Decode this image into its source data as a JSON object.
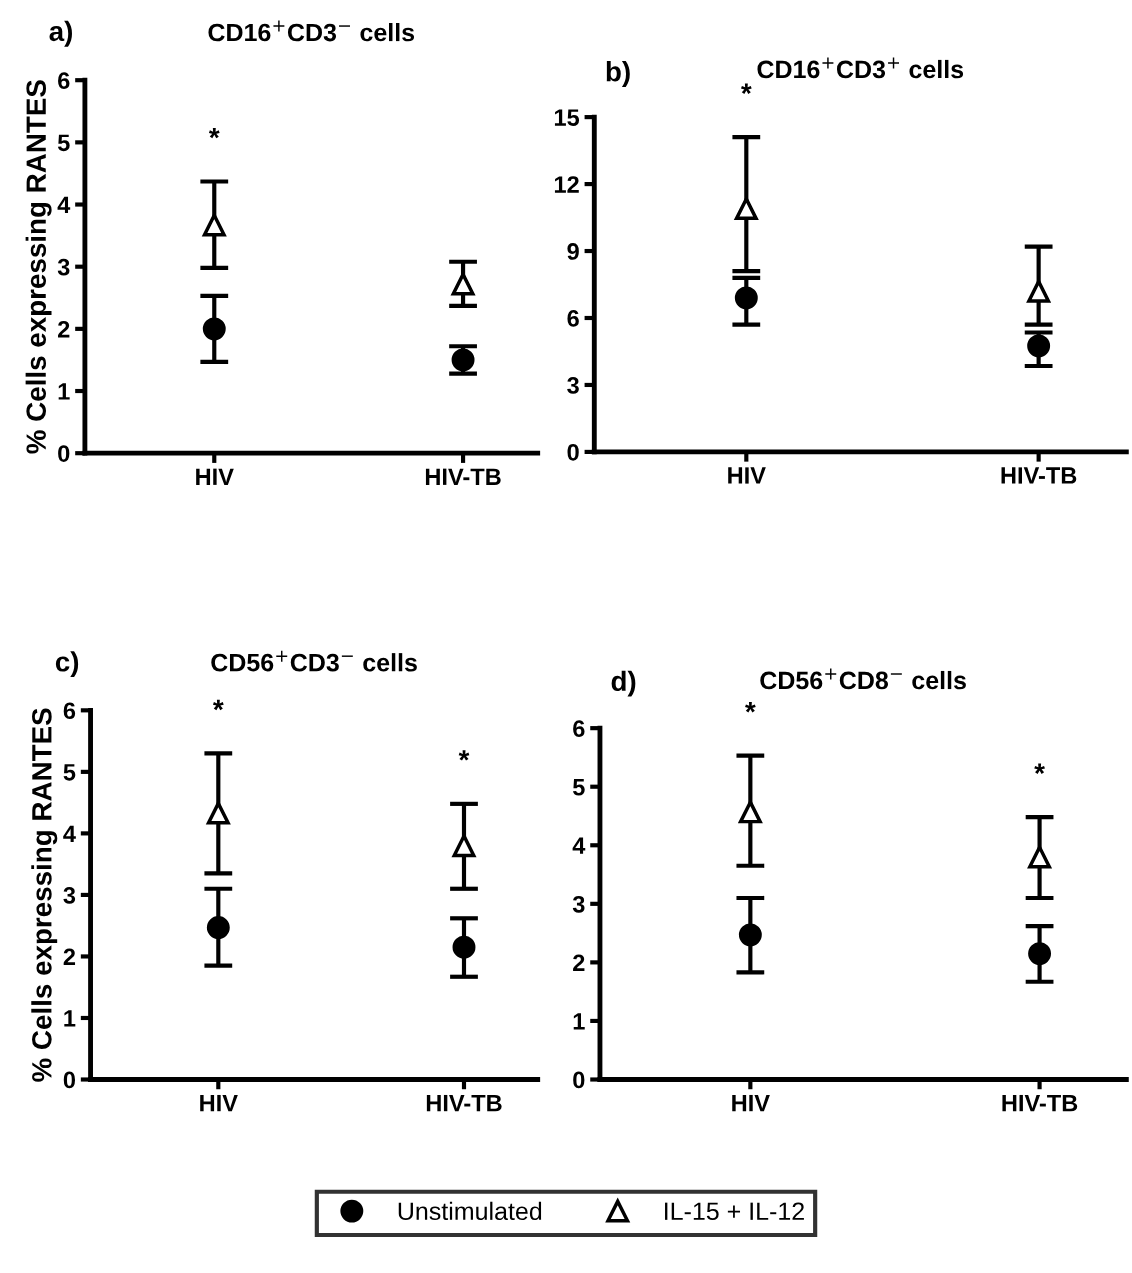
{
  "chart_data": [
    {
      "type": "scatter",
      "title": "CD16$^{+}$CD3$^{−}$ cells",
      "ylabel": "% Cells expressing RANTES",
      "categories": [
        "HIV",
        "HIV-TB"
      ],
      "ylim": [
        0,
        6
      ],
      "yticks": [
        0,
        1,
        2,
        3,
        4,
        5,
        6
      ],
      "grid": false,
      "series": [
        {
          "color": "#000000",
          "marker": "circle",
          "values": [
            2.0,
            1.5
          ],
          "errors": [
            [
              1.47,
              2.53
            ],
            [
              1.28,
              1.72
            ]
          ]
        },
        {
          "color": "#000000",
          "marker": "triangle",
          "values": [
            3.67,
            2.72
          ],
          "errors": [
            [
              2.98,
              4.37
            ],
            [
              2.37,
              3.08
            ]
          ]
        }
      ],
      "annotations": [
        "a)",
        {
          "text": "*",
          "x": "HIV",
          "y": 4.37
        }
      ]
    },
    {
      "type": "scatter",
      "title": "CD16$^{+}$CD3$^{+}$ cells",
      "categories": [
        "HIV",
        "HIV-TB"
      ],
      "ylim": [
        0,
        15
      ],
      "yticks": [
        0,
        3,
        6,
        9,
        12,
        15
      ],
      "grid": false,
      "series": [
        {
          "color": "#000000",
          "marker": "circle",
          "values": [
            6.9,
            4.75
          ],
          "errors": [
            [
              5.7,
              7.8
            ],
            [
              3.85,
              5.35
            ]
          ]
        },
        {
          "color": "#000000",
          "marker": "triangle",
          "values": [
            10.9,
            7.2
          ],
          "errors": [
            [
              8.1,
              14.1
            ],
            [
              5.7,
              9.2
            ]
          ]
        }
      ],
      "annotations": [
        "b)",
        {
          "text": "*",
          "x": "HIV",
          "y": 14.1
        }
      ]
    },
    {
      "type": "scatter",
      "title": "CD56$^{+}$CD3$^{−}$ cells",
      "ylabel": "% Cells expressing RANTES",
      "categories": [
        "HIV",
        "HIV-TB"
      ],
      "ylim": [
        0,
        6
      ],
      "yticks": [
        0,
        1,
        2,
        3,
        4,
        5,
        6
      ],
      "grid": false,
      "series": [
        {
          "color": "#000000",
          "marker": "circle",
          "values": [
            2.47,
            2.15
          ],
          "errors": [
            [
              1.85,
              3.1
            ],
            [
              1.67,
              2.62
            ]
          ]
        },
        {
          "color": "#000000",
          "marker": "triangle",
          "values": [
            4.33,
            3.8
          ],
          "errors": [
            [
              3.35,
              5.3
            ],
            [
              3.1,
              4.48
            ]
          ]
        }
      ],
      "annotations": [
        "c)",
        {
          "text": "*",
          "x": "HIV",
          "y": 5.3
        },
        {
          "text": "*",
          "x": "HIV-TB",
          "y": 4.48
        }
      ]
    },
    {
      "type": "scatter",
      "title": "CD56$^{+}$CD8$^{−}$ cells",
      "categories": [
        "HIV",
        "HIV-TB"
      ],
      "ylim": [
        0,
        6
      ],
      "yticks": [
        0,
        1,
        2,
        3,
        4,
        5,
        6
      ],
      "grid": false,
      "legend": "bottom",
      "series": [
        {
          "name": "Unstimulated",
          "color": "#000000",
          "marker": "circle",
          "values": [
            2.47,
            2.15
          ],
          "errors": [
            [
              1.83,
              3.1
            ],
            [
              1.67,
              2.62
            ]
          ]
        },
        {
          "name": "IL-15 + IL-12",
          "color": "#000000",
          "marker": "triangle",
          "values": [
            4.57,
            3.8
          ],
          "errors": [
            [
              3.65,
              5.53
            ],
            [
              3.1,
              4.48
            ]
          ]
        }
      ],
      "annotations": [
        "d)",
        {
          "text": "*",
          "x": "HIV",
          "y": 5.53
        },
        {
          "text": "*",
          "x": "HIV-TB",
          "y": 4.48
        }
      ]
    }
  ]
}
